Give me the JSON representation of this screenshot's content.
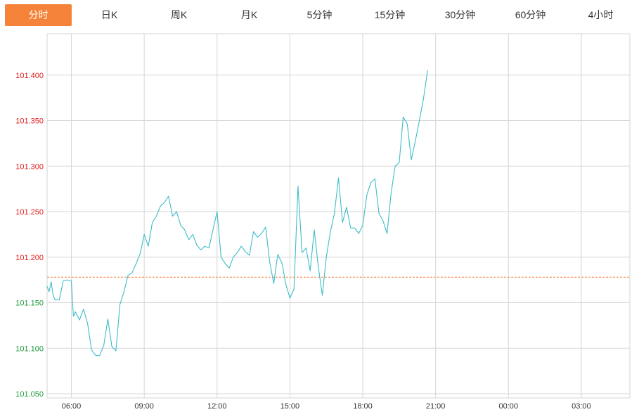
{
  "tabs": [
    {
      "label": "分时",
      "active": true
    },
    {
      "label": "日K",
      "active": false
    },
    {
      "label": "周K",
      "active": false
    },
    {
      "label": "月K",
      "active": false
    },
    {
      "label": "5分钟",
      "active": false
    },
    {
      "label": "15分钟",
      "active": false
    },
    {
      "label": "30分钟",
      "active": false
    },
    {
      "label": "60分钟",
      "active": false
    },
    {
      "label": "4小时",
      "active": false
    }
  ],
  "colors": {
    "accent": "#f5843a",
    "line": "#3dbdc8",
    "grid": "#d6d6d6",
    "axis_up": "#e02020",
    "axis_down": "#1a9a3a",
    "reference": "#f5843a",
    "tab_text": "#333333"
  },
  "chart_data": {
    "type": "line",
    "title": "",
    "xlabel": "",
    "ylabel": "",
    "ylim": [
      101.05,
      101.45
    ],
    "reference_value": 101.178,
    "y_ticks": [
      {
        "label": "101.400",
        "value": 101.4,
        "direction": "up"
      },
      {
        "label": "101.350",
        "value": 101.35,
        "direction": "up"
      },
      {
        "label": "101.300",
        "value": 101.3,
        "direction": "up"
      },
      {
        "label": "101.250",
        "value": 101.25,
        "direction": "up"
      },
      {
        "label": "101.200",
        "value": 101.2,
        "direction": "up"
      },
      {
        "label": "101.150",
        "value": 101.15,
        "direction": "down"
      },
      {
        "label": "101.100",
        "value": 101.1,
        "direction": "down"
      },
      {
        "label": "101.050",
        "value": 101.05,
        "direction": "down"
      }
    ],
    "x_ticks": [
      "06:00",
      "09:00",
      "12:00",
      "15:00",
      "18:00",
      "21:00",
      "00:00",
      "03:00"
    ],
    "x_start": "05:00",
    "x_end": "05:00 (+1d)",
    "series": [
      {
        "times": [
          "05:00",
          "05:05",
          "05:10",
          "05:15",
          "05:20",
          "05:30",
          "05:40",
          "05:50",
          "06:00",
          "06:05",
          "06:10",
          "06:20",
          "06:30",
          "06:40",
          "06:50",
          "07:00",
          "07:10",
          "07:20",
          "07:30",
          "07:40",
          "07:50",
          "08:00",
          "08:10",
          "08:20",
          "08:30",
          "08:40",
          "08:50",
          "09:00",
          "09:10",
          "09:20",
          "09:30",
          "09:40",
          "09:50",
          "10:00",
          "10:10",
          "10:20",
          "10:30",
          "10:40",
          "10:50",
          "11:00",
          "11:10",
          "11:20",
          "11:30",
          "11:40",
          "11:50",
          "12:00",
          "12:10",
          "12:20",
          "12:30",
          "12:40",
          "12:50",
          "13:00",
          "13:10",
          "13:20",
          "13:30",
          "13:40",
          "13:50",
          "14:00",
          "14:10",
          "14:20",
          "14:30",
          "14:40",
          "14:50",
          "15:00",
          "15:10",
          "15:20",
          "15:30",
          "15:40",
          "15:50",
          "16:00",
          "16:10",
          "16:20",
          "16:30",
          "16:40",
          "16:50",
          "17:00",
          "17:10",
          "17:20",
          "17:30",
          "17:40",
          "17:50",
          "18:00",
          "18:10",
          "18:20",
          "18:30",
          "18:40",
          "18:50",
          "19:00",
          "19:10",
          "19:20",
          "19:30",
          "19:40",
          "19:50",
          "20:00",
          "20:10",
          "20:20",
          "20:30",
          "20:40"
        ],
        "values": [
          101.168,
          101.162,
          101.173,
          101.158,
          101.153,
          101.153,
          101.174,
          101.175,
          101.174,
          101.135,
          101.14,
          101.131,
          101.143,
          101.127,
          101.098,
          101.092,
          101.092,
          101.103,
          101.132,
          101.102,
          101.097,
          101.148,
          101.162,
          101.18,
          101.183,
          101.193,
          101.204,
          101.225,
          101.212,
          101.238,
          101.245,
          101.256,
          101.26,
          101.267,
          101.245,
          101.25,
          101.235,
          101.23,
          101.219,
          101.225,
          101.213,
          101.208,
          101.212,
          101.21,
          101.23,
          101.25,
          101.2,
          101.193,
          101.188,
          101.2,
          101.205,
          101.212,
          101.206,
          101.202,
          101.228,
          101.222,
          101.226,
          101.233,
          101.195,
          101.171,
          101.203,
          101.194,
          101.17,
          101.155,
          101.165,
          101.278,
          101.205,
          101.21,
          101.185,
          101.23,
          101.19,
          101.158,
          101.2,
          101.228,
          101.248,
          101.287,
          101.238,
          101.255,
          101.232,
          101.232,
          101.226,
          101.235,
          101.268,
          101.282,
          101.286,
          101.248,
          101.24,
          101.226,
          101.27,
          101.3,
          101.304,
          101.354,
          101.346,
          101.307,
          101.328,
          101.35,
          101.374,
          101.405
        ]
      }
    ]
  }
}
